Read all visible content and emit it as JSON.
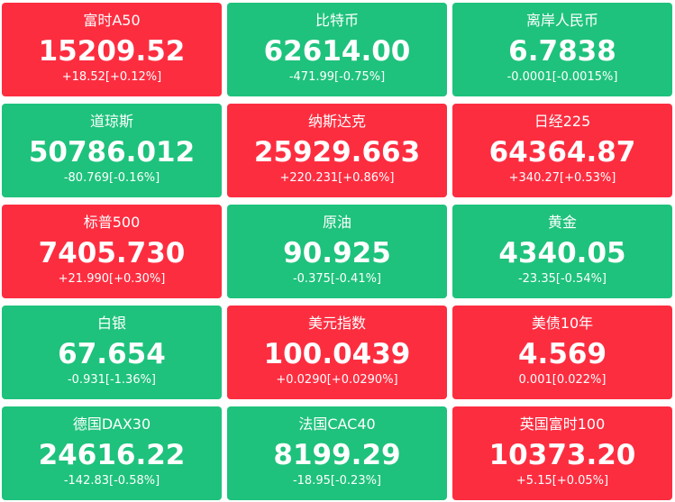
{
  "tiles": [
    {
      "name": "富时A50",
      "value": "15209.52",
      "change": "+18.52[+0.12%]",
      "color": "#fd2d40"
    },
    {
      "name": "比特币",
      "value": "62614.00",
      "change": "-471.99[-0.75%]",
      "color": "#1ec27c"
    },
    {
      "name": "离岸人民币",
      "value": "6.7838",
      "change": "-0.0001[-0.0015%]",
      "color": "#1ec27c"
    },
    {
      "name": "道琼斯",
      "value": "50786.012",
      "change": "-80.769[-0.16%]",
      "color": "#1ec27c"
    },
    {
      "name": "纳斯达克",
      "value": "25929.663",
      "change": "+220.231[+0.86%]",
      "color": "#fd2d40"
    },
    {
      "name": "日经225",
      "value": "64364.87",
      "change": "+340.27[+0.53%]",
      "color": "#fd2d40"
    },
    {
      "name": "标普500",
      "value": "7405.730",
      "change": "+21.990[+0.30%]",
      "color": "#fd2d40"
    },
    {
      "name": "原油",
      "value": "90.925",
      "change": "-0.375[-0.41%]",
      "color": "#1ec27c"
    },
    {
      "name": "黄金",
      "value": "4340.05",
      "change": "-23.35[-0.54%]",
      "color": "#1ec27c"
    },
    {
      "name": "白银",
      "value": "67.654",
      "change": "-0.931[-1.36%]",
      "color": "#1ec27c"
    },
    {
      "name": "美元指数",
      "value": "100.0439",
      "change": "+0.0290[+0.0290%]",
      "color": "#fd2d40"
    },
    {
      "name": "美债10年",
      "value": "4.569",
      "change": "0.001[0.022%]",
      "color": "#fd2d40"
    },
    {
      "name": "德国DAX30",
      "value": "24616.22",
      "change": "-142.83[-0.58%]",
      "color": "#1ec27c"
    },
    {
      "name": "法国CAC40",
      "value": "8199.29",
      "change": "-18.95[-0.23%]",
      "color": "#1ec27c"
    },
    {
      "name": "英国富时100",
      "value": "10373.20",
      "change": "+5.15[+0.05%]",
      "color": "#fd2d40"
    }
  ]
}
